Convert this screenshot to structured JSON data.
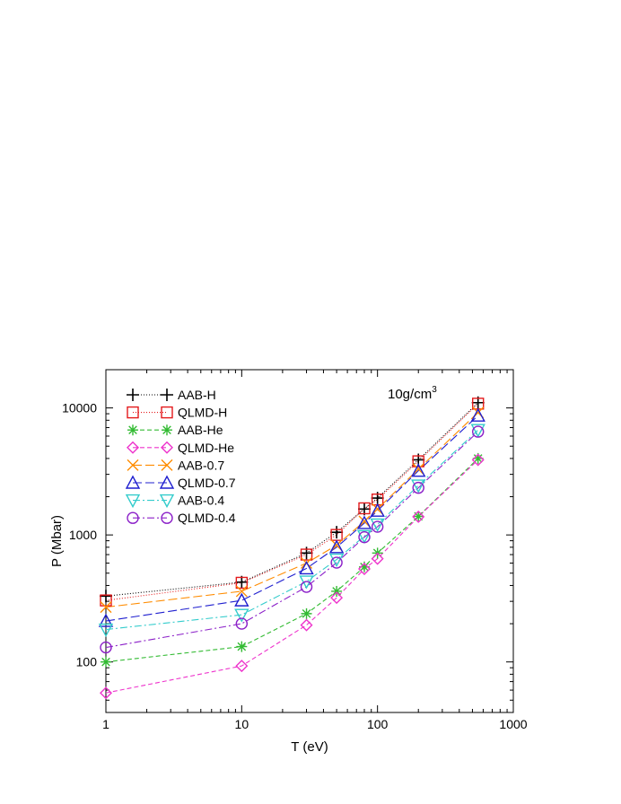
{
  "chart_data": {
    "type": "line",
    "annotation": {
      "main": "10g/cm",
      "sup": "3"
    },
    "xlabel": "T (eV)",
    "ylabel": "P (Mbar)",
    "xscale": "log",
    "yscale": "log",
    "xlim": [
      1,
      1000
    ],
    "ylim": [
      40,
      20000
    ],
    "xticks": [
      {
        "value": 1,
        "label": "1"
      },
      {
        "value": 10,
        "label": "10"
      },
      {
        "value": 100,
        "label": "100"
      },
      {
        "value": 1000,
        "label": "1000"
      }
    ],
    "yticks": [
      {
        "value": 100,
        "label": "100"
      },
      {
        "value": 1000,
        "label": "1000"
      },
      {
        "value": 10000,
        "label": "10000"
      }
    ],
    "legend_position": "top-left",
    "grid": false,
    "series": [
      {
        "name": "AAB-H",
        "color": "#000000",
        "marker": "plus",
        "dash": "1,2",
        "x": [
          1,
          10,
          30,
          50,
          80,
          100,
          200,
          550
        ],
        "y": [
          330,
          425,
          720,
          1050,
          1600,
          1950,
          3900,
          11000
        ]
      },
      {
        "name": "QLMD-H",
        "color": "#e41a1c",
        "marker": "square",
        "dash": "1,2",
        "x": [
          1,
          10,
          30,
          50,
          80,
          100,
          200,
          550
        ],
        "y": [
          305,
          420,
          700,
          1000,
          1620,
          1900,
          3800,
          10800
        ]
      },
      {
        "name": "AAB-He",
        "color": "#33bb33",
        "marker": "star",
        "dash": "5,3",
        "x": [
          1,
          10,
          30,
          50,
          80,
          100,
          200,
          550
        ],
        "y": [
          100,
          132,
          240,
          360,
          560,
          720,
          1400,
          4000
        ]
      },
      {
        "name": "QLMD-He",
        "color": "#ee33cc",
        "marker": "diamond",
        "dash": "5,3",
        "x": [
          1,
          10,
          30,
          50,
          80,
          100,
          200,
          550
        ],
        "y": [
          57,
          93,
          195,
          320,
          540,
          650,
          1390,
          3900
        ]
      },
      {
        "name": "AAB-0.7",
        "color": "#ff8c00",
        "marker": "cross",
        "dash": "10,4",
        "x": [
          1,
          10,
          30,
          50,
          80,
          100,
          200,
          550
        ],
        "y": [
          270,
          360,
          600,
          830,
          1280,
          1600,
          3300,
          9200
        ]
      },
      {
        "name": "QLMD-0.7",
        "color": "#1f1fcf",
        "marker": "triangle",
        "dash": "10,4",
        "x": [
          1,
          10,
          30,
          50,
          80,
          100,
          200,
          550
        ],
        "y": [
          210,
          305,
          545,
          800,
          1240,
          1550,
          3200,
          8700
        ]
      },
      {
        "name": "AAB-0.4",
        "color": "#33cccc",
        "marker": "triangle-down",
        "dash": "8,3,2,3",
        "x": [
          1,
          10,
          30,
          50,
          80,
          100,
          200,
          550
        ],
        "y": [
          180,
          235,
          430,
          640,
          980,
          1210,
          2450,
          6700
        ]
      },
      {
        "name": "QLMD-0.4",
        "color": "#8b1fc8",
        "marker": "circle",
        "dash": "8,3,2,3",
        "x": [
          1,
          10,
          30,
          50,
          80,
          100,
          200,
          550
        ],
        "y": [
          130,
          200,
          390,
          605,
          960,
          1160,
          2350,
          6500
        ]
      }
    ]
  }
}
